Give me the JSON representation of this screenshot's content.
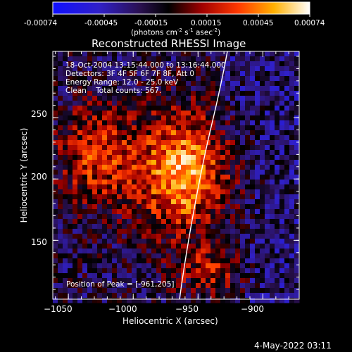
{
  "colorbar": {
    "ticks": [
      "-0.00074",
      "-0.00045",
      "-0.00015",
      "0.00015",
      "0.00045",
      "0.00074"
    ],
    "unit_label": "(photons cm",
    "unit_sup1": "-2",
    "unit_mid": " s",
    "unit_sup2": "-1",
    "unit_mid2": " asec",
    "unit_sup3": "-2",
    "unit_end": ")",
    "colors": [
      "#0000ff",
      "#4b0082",
      "#000000",
      "#a00000",
      "#ff4000",
      "#ff8c00",
      "#ffd000",
      "#ffffff"
    ]
  },
  "chart_data": {
    "type": "heatmap",
    "title": "Reconstructed RHESSI Image",
    "xlabel": "Heliocentric X (arcsec)",
    "ylabel": "Heliocentric Y (arcsec)",
    "xlim": [
      -1062,
      -872
    ],
    "ylim": [
      102,
      304
    ],
    "x_ticks": [
      -1050,
      -1000,
      -950,
      -900
    ],
    "y_ticks": [
      150,
      200,
      250
    ],
    "x_tick_labels": [
      "−1050",
      "−1000",
      "−950",
      "−900"
    ],
    "y_tick_labels": [
      "150",
      "200",
      "250"
    ],
    "value_range": [
      -0.00074,
      0.00074
    ],
    "peak": [
      -961,
      205
    ],
    "info_lines": [
      "18-Oct-2004 13:15:44.000 to 13:16:44.000",
      "Detectors: 3F 4F 5F 6F 7F 8F, Att 0",
      "Energy Range: 12.0 - 25.0 keV",
      "Clean    Total counts: 567."
    ],
    "peak_label": "Position of Peak = [-961,205]"
  },
  "footer": {
    "date": "4-May-2022 03:11"
  }
}
